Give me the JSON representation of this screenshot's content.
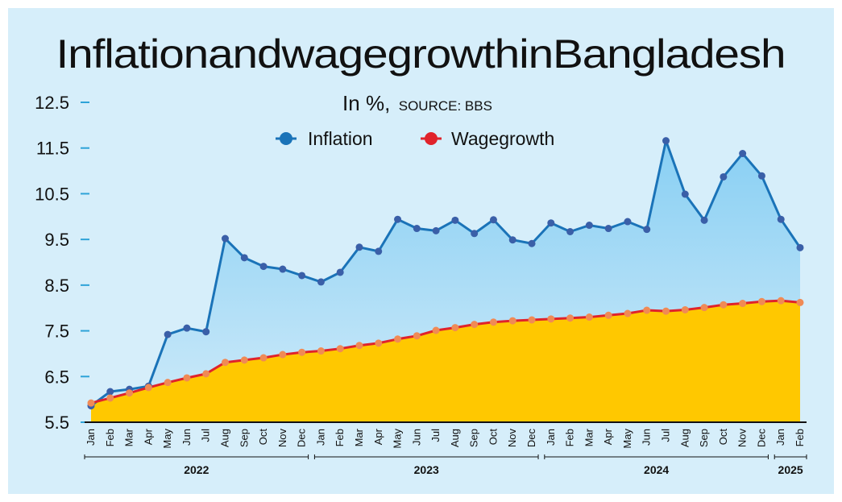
{
  "chart_data": {
    "type": "line",
    "title": "InflationandwagegrowthinBangladesh",
    "subtitle": "In %,",
    "source": "SOURCE: BBS",
    "ylim": [
      5.5,
      12.5
    ],
    "yticks": [
      "12.5",
      "11.5",
      "10.5",
      "9.5",
      "8.5",
      "7.5",
      "6.5",
      "5.5"
    ],
    "categories": [
      "Jan",
      "Feb",
      "Mar",
      "Apr",
      "May",
      "Jun",
      "Jul",
      "Aug",
      "Sep",
      "Oct",
      "Nov",
      "Dec",
      "Jan",
      "Feb",
      "Mar",
      "Apr",
      "May",
      "Jun",
      "Jul",
      "Aug",
      "Sep",
      "Oct",
      "Nov",
      "Dec",
      "Jan",
      "Feb",
      "Mar",
      "Apr",
      "May",
      "Jun",
      "Jul",
      "Aug",
      "Sep",
      "Oct",
      "Nov",
      "Dec",
      "Jan",
      "Feb"
    ],
    "years": [
      {
        "label": "2022",
        "start": 0,
        "end": 11
      },
      {
        "label": "2023",
        "start": 12,
        "end": 23
      },
      {
        "label": "2024",
        "start": 24,
        "end": 35
      },
      {
        "label": "2025",
        "start": 36,
        "end": 37
      }
    ],
    "series": [
      {
        "name": "Inflation",
        "color": "#1a73b8",
        "marker": "#3a5fa8",
        "values": [
          5.86,
          6.17,
          6.22,
          6.29,
          7.42,
          7.56,
          7.48,
          9.52,
          9.1,
          8.91,
          8.85,
          8.71,
          8.57,
          8.78,
          9.33,
          9.24,
          9.94,
          9.74,
          9.69,
          9.92,
          9.63,
          9.93,
          9.49,
          9.41,
          9.86,
          9.67,
          9.81,
          9.74,
          9.89,
          9.72,
          11.66,
          10.49,
          9.92,
          10.87,
          11.38,
          10.89,
          9.94,
          9.32
        ]
      },
      {
        "name": "Wagegrowth",
        "color": "#e0232b",
        "marker": "#f08a55",
        "values": [
          5.92,
          6.03,
          6.14,
          6.26,
          6.37,
          6.47,
          6.56,
          6.81,
          6.86,
          6.91,
          6.98,
          7.03,
          7.06,
          7.11,
          7.18,
          7.23,
          7.32,
          7.39,
          7.51,
          7.57,
          7.64,
          7.69,
          7.72,
          7.74,
          7.76,
          7.78,
          7.8,
          7.84,
          7.88,
          7.95,
          7.93,
          7.96,
          8.01,
          8.07,
          8.1,
          8.14,
          8.16,
          8.12
        ]
      }
    ],
    "legend": [
      "Inflation",
      "Wagegrowth"
    ],
    "colors": {
      "background": "#d6eefa",
      "wage_area": "#ffc800",
      "inflation_area_top": "#88cff3",
      "inflation_area_bottom": "#cbe9f9"
    }
  }
}
